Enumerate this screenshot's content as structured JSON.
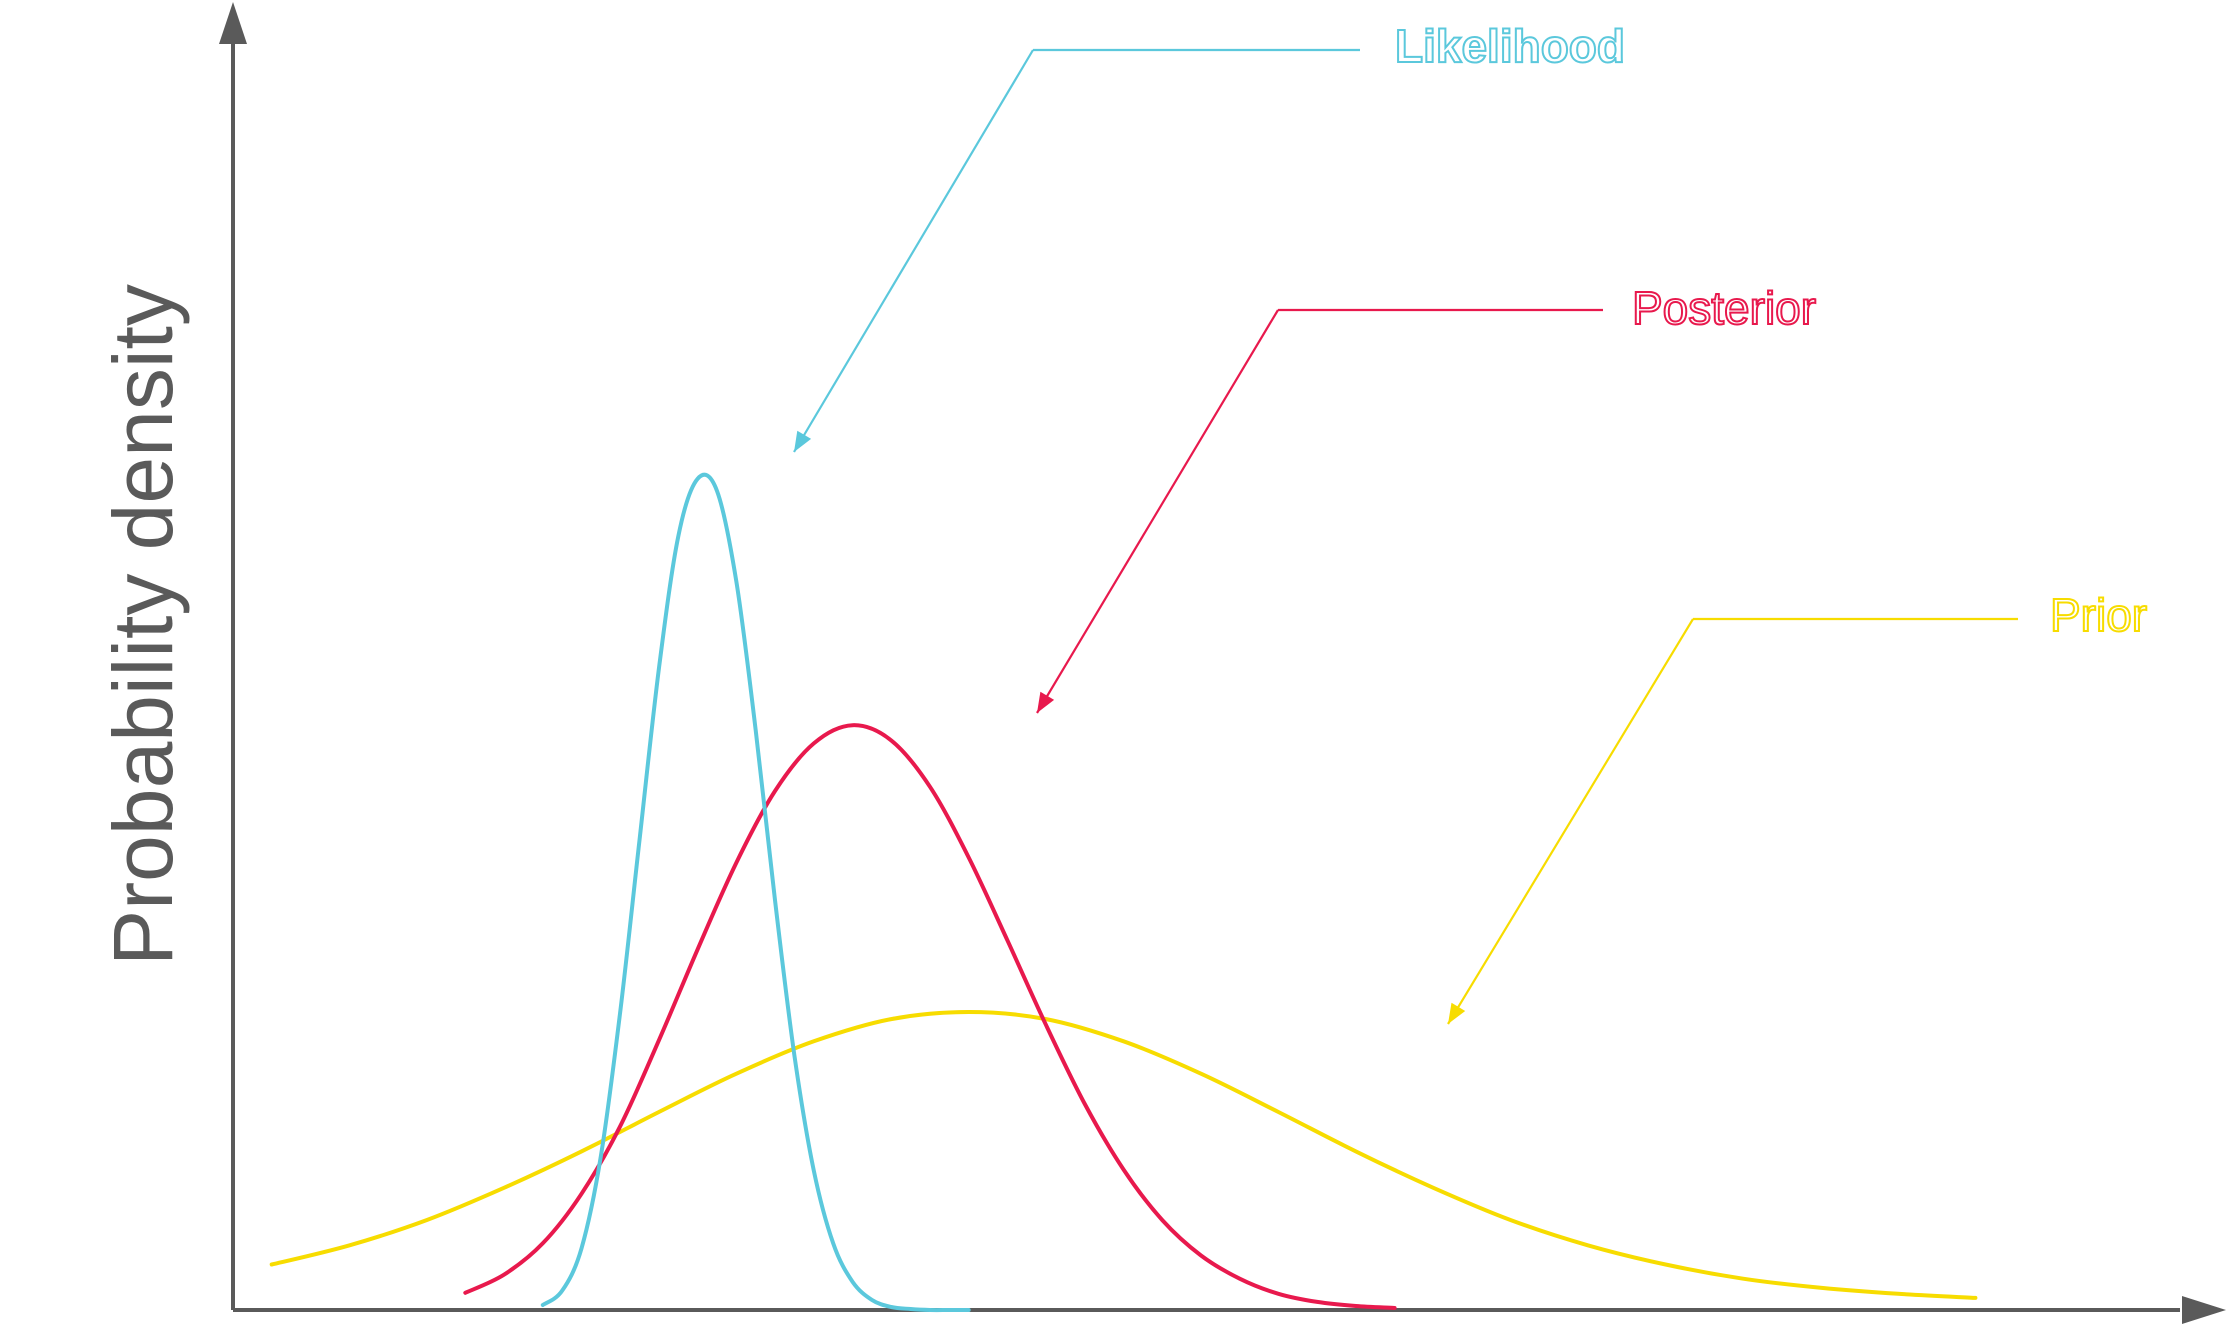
{
  "chart_data": {
    "type": "line",
    "ylabel": "Probability density",
    "xlabel": "",
    "xlim": [
      0,
      100
    ],
    "ylim": [
      0,
      100
    ],
    "grid": false,
    "legend": "callout labels with leader arrows",
    "series": [
      {
        "name": "Likelihood",
        "color": "#5bc8dc",
        "x": [
          16,
          17,
          18,
          19,
          20,
          21,
          22,
          23,
          24,
          25,
          26,
          27,
          28,
          29,
          30,
          31,
          32,
          33,
          34,
          35,
          36,
          37,
          38
        ],
        "y": [
          0.5,
          1.9,
          6.1,
          15.2,
          29.5,
          46.6,
          63.5,
          76.6,
          82.3,
          81.1,
          72.1,
          57.4,
          40.5,
          25.2,
          13.8,
          6.6,
          2.8,
          1,
          0.3,
          0.1,
          0,
          0,
          0
        ]
      },
      {
        "name": "Posterior",
        "color": "#e8194d",
        "x": [
          12,
          14,
          16,
          18,
          20,
          22,
          24,
          26,
          28,
          30,
          32,
          34,
          36,
          38,
          40,
          42,
          44,
          46,
          48,
          50,
          52,
          54,
          56,
          58,
          60
        ],
        "y": [
          1.7,
          3.5,
          6.6,
          11.5,
          18.2,
          26.7,
          35.7,
          44.3,
          51.4,
          56.1,
          57.9,
          56.4,
          51.8,
          44.8,
          36.6,
          28.2,
          20.4,
          13.9,
          8.9,
          5.4,
          3.1,
          1.6,
          0.8,
          0.4,
          0.2
        ]
      },
      {
        "name": "Prior",
        "color": "#f7dc00",
        "x": [
          2,
          6,
          10,
          14,
          18,
          22,
          26,
          30,
          34,
          38,
          42,
          46,
          50,
          54,
          58,
          62,
          66,
          70,
          74,
          78,
          82,
          86,
          90
        ],
        "y": [
          4.5,
          6.4,
          8.9,
          12.1,
          15.7,
          19.6,
          23.4,
          26.6,
          28.8,
          29.5,
          28.8,
          26.6,
          23.4,
          19.6,
          15.7,
          12.1,
          8.9,
          6.4,
          4.5,
          3.1,
          2.2,
          1.6,
          1.2
        ]
      }
    ],
    "annotations": [
      {
        "text": "Likelihood",
        "series": "Likelihood",
        "bold": true
      },
      {
        "text": "Posterior",
        "series": "Posterior",
        "bold": false
      },
      {
        "text": "Prior",
        "series": "Prior",
        "bold": false
      }
    ],
    "axis_color": "#5a5a5a"
  }
}
